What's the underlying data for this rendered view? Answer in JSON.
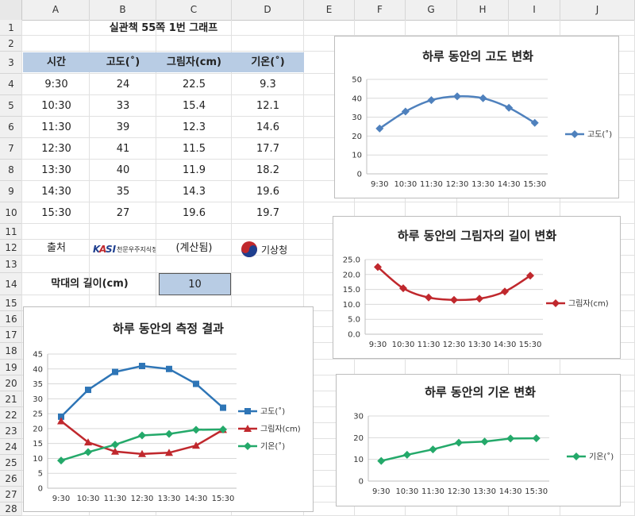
{
  "columns": [
    "A",
    "B",
    "C",
    "D",
    "E",
    "F",
    "G",
    "H",
    "I",
    "J"
  ],
  "rows": [
    "1",
    "2",
    "3",
    "4",
    "5",
    "6",
    "7",
    "8",
    "9",
    "10",
    "11",
    "12",
    "13",
    "14",
    "15",
    "16",
    "17",
    "18",
    "19",
    "20",
    "21",
    "22",
    "23",
    "24",
    "25",
    "26",
    "27",
    "28"
  ],
  "sheet": {
    "title": "실관책 55쪽 1번 그래프",
    "headers": [
      "시간",
      "고도(˚)",
      "그림자(cm)",
      "기온(˚)"
    ],
    "table": [
      [
        "9:30",
        "24",
        "22.5",
        "9.3"
      ],
      [
        "10:30",
        "33",
        "15.4",
        "12.1"
      ],
      [
        "11:30",
        "39",
        "12.3",
        "14.6"
      ],
      [
        "12:30",
        "41",
        "11.5",
        "17.7"
      ],
      [
        "13:30",
        "40",
        "11.9",
        "18.2"
      ],
      [
        "14:30",
        "35",
        "14.3",
        "19.6"
      ],
      [
        "15:30",
        "27",
        "19.6",
        "19.7"
      ]
    ],
    "source_label": "출처",
    "kasi_logo_text": "KASI",
    "kasi_org_text": "천문우주지식정보",
    "calc_note": "(계산됨)",
    "kma_text": "기상청",
    "stick_label": "막대의 길이(cm)",
    "stick_value": "10"
  },
  "colors": {
    "altitude": "#4f81bd",
    "shadow": "#c0282d",
    "temperature": "#24a96a",
    "header_fill": "#b8cce4"
  },
  "chart_data": [
    {
      "type": "line",
      "title": "하루 동안의 고도 변화",
      "categories": [
        "9:30",
        "10:30",
        "11:30",
        "12:30",
        "13:30",
        "14:30",
        "15:30"
      ],
      "series": [
        {
          "name": "고도(˚)",
          "values": [
            24,
            33,
            39,
            41,
            40,
            35,
            27
          ],
          "color": "#4f81bd",
          "marker": "diamond"
        }
      ],
      "ylim": [
        0,
        50
      ],
      "yticks": [
        "0",
        "10",
        "20",
        "30",
        "40",
        "50"
      ],
      "smooth": true,
      "legend": "right"
    },
    {
      "type": "line",
      "title": "하루 동안의 그림자의 길이 변화",
      "categories": [
        "9:30",
        "10:30",
        "11:30",
        "12:30",
        "13:30",
        "14:30",
        "15:30"
      ],
      "series": [
        {
          "name": "그림자(cm)",
          "values": [
            22.5,
            15.4,
            12.3,
            11.5,
            11.9,
            14.3,
            19.6
          ],
          "color": "#c0282d",
          "marker": "diamond"
        }
      ],
      "ylim": [
        0,
        25
      ],
      "yticks": [
        "0.0",
        "5.0",
        "10.0",
        "15.0",
        "20.0",
        "25.0"
      ],
      "smooth": true,
      "legend": "right"
    },
    {
      "type": "line",
      "title": "하루 동안의 기온 변화",
      "categories": [
        "9:30",
        "10:30",
        "11:30",
        "12:30",
        "13:30",
        "14:30",
        "15:30"
      ],
      "series": [
        {
          "name": "기온(˚)",
          "values": [
            9.3,
            12.1,
            14.6,
            17.7,
            18.2,
            19.6,
            19.7
          ],
          "color": "#24a96a",
          "marker": "diamond"
        }
      ],
      "ylim": [
        0,
        30
      ],
      "yticks": [
        "0",
        "10",
        "20",
        "30"
      ],
      "smooth": false,
      "legend": "right"
    },
    {
      "type": "line",
      "title": "하루 동안의 측정 결과",
      "categories": [
        "9:30",
        "10:30",
        "11:30",
        "12:30",
        "13:30",
        "14:30",
        "15:30"
      ],
      "series": [
        {
          "name": "고도(˚)",
          "values": [
            24,
            33,
            39,
            41,
            40,
            35,
            27
          ],
          "color": "#2e75b6",
          "marker": "square"
        },
        {
          "name": "그림자(cm)",
          "values": [
            22.5,
            15.4,
            12.3,
            11.5,
            11.9,
            14.3,
            19.6
          ],
          "color": "#c0282d",
          "marker": "triangle"
        },
        {
          "name": "기온(˚)",
          "values": [
            9.3,
            12.1,
            14.6,
            17.7,
            18.2,
            19.6,
            19.7
          ],
          "color": "#24a96a",
          "marker": "diamond"
        }
      ],
      "ylim": [
        0,
        45
      ],
      "yticks": [
        "0",
        "5",
        "10",
        "15",
        "20",
        "25",
        "30",
        "35",
        "40",
        "45"
      ],
      "smooth": false,
      "legend": "right"
    }
  ]
}
